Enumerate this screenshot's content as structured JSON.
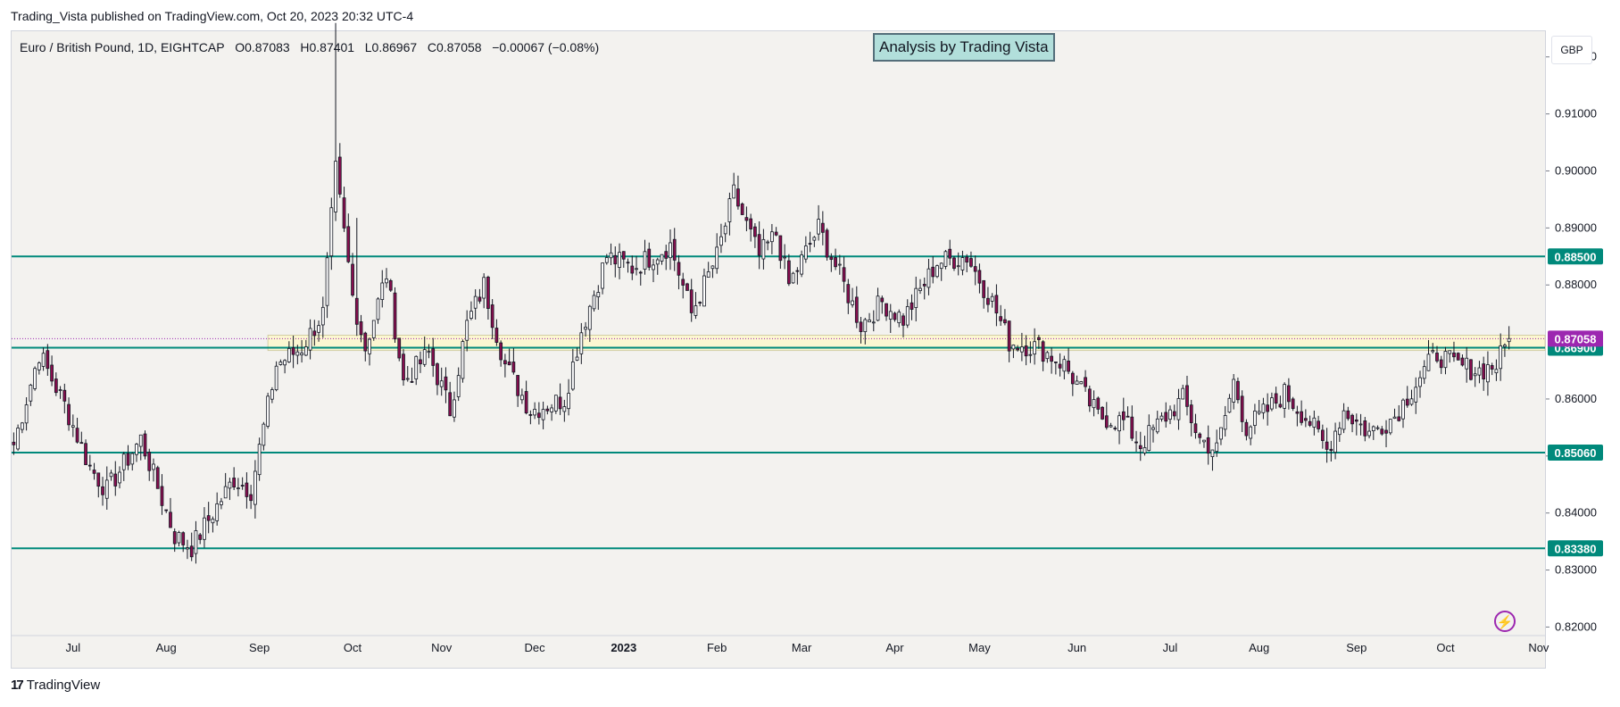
{
  "publish_line": "Trading_Vista published on TradingView.com, Oct 20, 2023 20:32 UTC-4",
  "legend": {
    "symbol": "Euro / British Pound, 1D, EIGHTCAP",
    "open": "O0.87083",
    "high": "H0.87401",
    "low": "L0.86967",
    "close": "C0.87058",
    "change": "−0.00067 (−0.08%)"
  },
  "annotation_title": "Analysis by Trading Vista",
  "currency_button": "GBP",
  "footer_brand": "TradingView",
  "icons": [
    "tradingview-logo-icon",
    "lightning-bolt-icon"
  ],
  "colors": {
    "up": "#ffffff",
    "down": "#880e4f",
    "wick": "#131722",
    "level_line": "#00897b",
    "level_label_bg": "#00897b",
    "last_price_bg": "#9c27b0",
    "zone_fill": "#fff9c4"
  },
  "chart_data": {
    "type": "candlestick",
    "title": "Analysis by Trading Vista",
    "symbol": "EUR/GBP",
    "timeframe": "1D",
    "y_axis": {
      "ticks": [
        "0.92000",
        "0.91000",
        "0.90000",
        "0.89000",
        "0.88000",
        "0.86000",
        "0.85000",
        "0.84000",
        "0.83000",
        "0.82000"
      ],
      "ylim": [
        0.8185,
        0.9245
      ]
    },
    "x_axis": {
      "ticks": [
        {
          "label": "Jul",
          "i": 14
        },
        {
          "label": "Aug",
          "i": 36
        },
        {
          "label": "Sep",
          "i": 58
        },
        {
          "label": "Oct",
          "i": 80
        },
        {
          "label": "Nov",
          "i": 101
        },
        {
          "label": "Dec",
          "i": 123
        },
        {
          "label": "2023",
          "i": 144,
          "bold": true
        },
        {
          "label": "Feb",
          "i": 166
        },
        {
          "label": "Mar",
          "i": 186
        },
        {
          "label": "Apr",
          "i": 208
        },
        {
          "label": "May",
          "i": 228
        },
        {
          "label": "Jun",
          "i": 251
        },
        {
          "label": "Jul",
          "i": 273
        },
        {
          "label": "Aug",
          "i": 294
        },
        {
          "label": "Sep",
          "i": 317
        },
        {
          "label": "Oct",
          "i": 338
        },
        {
          "label": "Nov",
          "i": 360
        }
      ],
      "slots": 362
    },
    "levels": [
      {
        "value": 0.885,
        "label": "0.88500"
      },
      {
        "value": 0.869,
        "label": "0.86900"
      },
      {
        "value": 0.8506,
        "label": "0.85060"
      },
      {
        "value": 0.8338,
        "label": "0.83380"
      }
    ],
    "last_price": {
      "value": 0.87058,
      "label": "0.87058"
    },
    "zone": {
      "from": 0.8685,
      "to": 0.8712,
      "start_i": 60
    },
    "anchors": [
      [
        0,
        0.852
      ],
      [
        6,
        0.868
      ],
      [
        12,
        0.859
      ],
      [
        18,
        0.848
      ],
      [
        22,
        0.844
      ],
      [
        30,
        0.853
      ],
      [
        38,
        0.836
      ],
      [
        42,
        0.834
      ],
      [
        52,
        0.846
      ],
      [
        56,
        0.844
      ],
      [
        62,
        0.866
      ],
      [
        68,
        0.869
      ],
      [
        73,
        0.875
      ],
      [
        76,
        0.9
      ],
      [
        80,
        0.878
      ],
      [
        83,
        0.869
      ],
      [
        88,
        0.882
      ],
      [
        92,
        0.863
      ],
      [
        98,
        0.868
      ],
      [
        103,
        0.858
      ],
      [
        107,
        0.873
      ],
      [
        111,
        0.88
      ],
      [
        116,
        0.866
      ],
      [
        122,
        0.858
      ],
      [
        130,
        0.86
      ],
      [
        134,
        0.872
      ],
      [
        140,
        0.885
      ],
      [
        146,
        0.883
      ],
      [
        155,
        0.887
      ],
      [
        160,
        0.875
      ],
      [
        166,
        0.885
      ],
      [
        170,
        0.896
      ],
      [
        176,
        0.885
      ],
      [
        180,
        0.889
      ],
      [
        183,
        0.88
      ],
      [
        190,
        0.89
      ],
      [
        196,
        0.88
      ],
      [
        200,
        0.873
      ],
      [
        205,
        0.877
      ],
      [
        210,
        0.874
      ],
      [
        218,
        0.884
      ],
      [
        225,
        0.885
      ],
      [
        231,
        0.877
      ],
      [
        235,
        0.87
      ],
      [
        242,
        0.869
      ],
      [
        248,
        0.866
      ],
      [
        256,
        0.857
      ],
      [
        262,
        0.856
      ],
      [
        266,
        0.852
      ],
      [
        272,
        0.857
      ],
      [
        276,
        0.86
      ],
      [
        280,
        0.853
      ],
      [
        284,
        0.851
      ],
      [
        288,
        0.863
      ],
      [
        291,
        0.855
      ],
      [
        296,
        0.858
      ],
      [
        300,
        0.861
      ],
      [
        306,
        0.856
      ],
      [
        310,
        0.851
      ],
      [
        314,
        0.858
      ],
      [
        320,
        0.854
      ],
      [
        326,
        0.857
      ],
      [
        332,
        0.864
      ],
      [
        336,
        0.868
      ],
      [
        340,
        0.866
      ],
      [
        346,
        0.865
      ],
      [
        350,
        0.866
      ],
      [
        353,
        0.8706
      ]
    ]
  }
}
